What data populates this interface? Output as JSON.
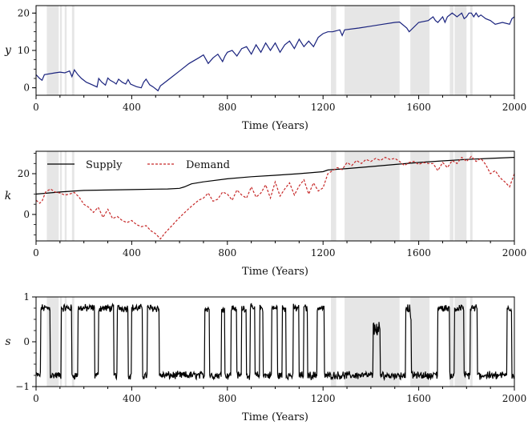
{
  "chart_data": [
    {
      "type": "line",
      "id": "panel-y",
      "ylabel": "y",
      "xlabel": "Time (Years)",
      "xlim": [
        0,
        2000
      ],
      "ylim": [
        -2,
        22
      ],
      "xticks": [
        0,
        400,
        800,
        1200,
        1600,
        2000
      ],
      "yticks": [
        0,
        10,
        20
      ],
      "xtick_labels": [
        "0",
        "400",
        "800",
        "1200",
        "1600",
        "2000"
      ],
      "ytick_labels": [
        "0",
        "10",
        "20"
      ],
      "shaded_intervals": [
        [
          45,
          95
        ],
        [
          100,
          108
        ],
        [
          120,
          128
        ],
        [
          150,
          160
        ],
        [
          1233,
          1255
        ],
        [
          1290,
          1520
        ],
        [
          1565,
          1645
        ],
        [
          1730,
          1745
        ],
        [
          1750,
          1800
        ],
        [
          1815,
          1825
        ]
      ],
      "series": [
        {
          "name": "y",
          "color": "#1a237e",
          "style": "solid",
          "x": [
            0,
            15,
            25,
            35,
            80,
            100,
            120,
            140,
            150,
            160,
            175,
            190,
            210,
            235,
            255,
            262,
            275,
            290,
            300,
            310,
            325,
            335,
            345,
            360,
            375,
            385,
            395,
            420,
            440,
            450,
            460,
            475,
            490,
            510,
            520,
            530,
            560,
            600,
            640,
            680,
            700,
            720,
            740,
            760,
            780,
            790,
            800,
            820,
            840,
            860,
            880,
            900,
            920,
            940,
            960,
            980,
            1000,
            1020,
            1040,
            1060,
            1080,
            1100,
            1120,
            1140,
            1160,
            1180,
            1200,
            1220,
            1240,
            1270,
            1280,
            1290,
            1350,
            1400,
            1450,
            1500,
            1520,
            1550,
            1560,
            1600,
            1640,
            1660,
            1670,
            1680,
            1700,
            1710,
            1720,
            1740,
            1760,
            1780,
            1790,
            1800,
            1810,
            1820,
            1830,
            1840,
            1850,
            1860,
            1880,
            1900,
            1920,
            1950,
            1980,
            1990,
            2000
          ],
          "y": [
            3.5,
            2.5,
            2.0,
            3.5,
            4.0,
            4.2,
            4.0,
            4.5,
            3.0,
            4.8,
            3.5,
            2.5,
            1.5,
            0.8,
            0.2,
            2.5,
            1.5,
            0.7,
            2.6,
            2.0,
            1.5,
            1.0,
            2.3,
            1.5,
            1.0,
            2.2,
            1.0,
            0.3,
            0.0,
            1.5,
            2.3,
            0.8,
            0.2,
            -0.8,
            0.5,
            1.0,
            2.5,
            4.5,
            6.5,
            8.0,
            8.8,
            6.5,
            8.0,
            9.0,
            7.0,
            8.5,
            9.5,
            10.0,
            8.5,
            10.5,
            11.0,
            9.0,
            11.5,
            9.5,
            12.0,
            10.0,
            12.0,
            9.5,
            11.5,
            12.5,
            10.5,
            13.0,
            11.0,
            12.5,
            11.0,
            13.5,
            14.5,
            15.0,
            15.0,
            15.5,
            14.0,
            15.5,
            16.0,
            16.5,
            17.0,
            17.5,
            17.6,
            16.0,
            15.0,
            17.5,
            18.0,
            19.0,
            18.0,
            17.5,
            19.0,
            17.5,
            19.0,
            20.0,
            19.0,
            20.0,
            18.5,
            19.0,
            20.0,
            20.0,
            19.0,
            20.0,
            19.0,
            19.5,
            18.5,
            18.0,
            17.0,
            17.5,
            17.0,
            18.5,
            19.0
          ]
        }
      ]
    },
    {
      "type": "line",
      "id": "panel-k",
      "ylabel": "k",
      "xlabel": "Time (Years)",
      "xlim": [
        0,
        2000
      ],
      "ylim": [
        -13,
        31
      ],
      "xticks": [
        0,
        400,
        800,
        1200,
        1600,
        2000
      ],
      "yticks": [
        0,
        20
      ],
      "xtick_labels": [
        "0",
        "400",
        "800",
        "1200",
        "1600",
        "2000"
      ],
      "ytick_labels": [
        "0",
        "20"
      ],
      "shaded_intervals": [
        [
          45,
          95
        ],
        [
          100,
          108
        ],
        [
          120,
          128
        ],
        [
          150,
          160
        ],
        [
          1233,
          1255
        ],
        [
          1290,
          1520
        ],
        [
          1565,
          1645
        ],
        [
          1730,
          1745
        ],
        [
          1750,
          1800
        ],
        [
          1815,
          1825
        ]
      ],
      "legend": [
        "Supply",
        "Demand"
      ],
      "series": [
        {
          "name": "Supply",
          "color": "#000000",
          "style": "solid",
          "x": [
            0,
            100,
            200,
            300,
            400,
            500,
            550,
            600,
            620,
            650,
            700,
            800,
            900,
            1000,
            1100,
            1200,
            1220,
            1300,
            1400,
            1500,
            1600,
            1700,
            1800,
            1900,
            2000
          ],
          "y": [
            10.0,
            11.0,
            11.8,
            12.0,
            12.2,
            12.4,
            12.5,
            12.8,
            13.5,
            15.0,
            16.0,
            17.5,
            18.5,
            19.2,
            20.0,
            21.0,
            21.8,
            22.5,
            23.5,
            24.5,
            25.5,
            26.3,
            27.0,
            27.5,
            28.0
          ]
        },
        {
          "name": "Demand",
          "color": "#c62828",
          "style": "dashed",
          "x": [
            0,
            15,
            25,
            40,
            60,
            80,
            100,
            120,
            140,
            160,
            180,
            200,
            220,
            240,
            260,
            280,
            300,
            320,
            340,
            360,
            380,
            400,
            420,
            440,
            460,
            480,
            500,
            520,
            540,
            560,
            600,
            640,
            680,
            700,
            720,
            740,
            760,
            780,
            800,
            820,
            840,
            860,
            880,
            900,
            920,
            940,
            960,
            980,
            1000,
            1020,
            1040,
            1060,
            1080,
            1100,
            1120,
            1140,
            1160,
            1180,
            1200,
            1220,
            1240,
            1260,
            1280,
            1300,
            1320,
            1340,
            1360,
            1380,
            1400,
            1420,
            1440,
            1460,
            1480,
            1500,
            1520,
            1540,
            1560,
            1580,
            1600,
            1620,
            1640,
            1660,
            1680,
            1700,
            1720,
            1740,
            1760,
            1780,
            1800,
            1820,
            1840,
            1860,
            1880,
            1900,
            1920,
            1940,
            1960,
            1980,
            2000
          ],
          "y": [
            7.0,
            5.5,
            6.5,
            11.0,
            12.5,
            11.0,
            10.5,
            9.5,
            10.0,
            10.8,
            8.5,
            5.0,
            3.5,
            1.0,
            3.5,
            -1.5,
            2.5,
            -2.0,
            -1.0,
            -3.0,
            -4.0,
            -3.0,
            -5.0,
            -6.0,
            -5.5,
            -8.0,
            -9.5,
            -12.0,
            -9.0,
            -6.5,
            -1.5,
            3.0,
            7.0,
            8.0,
            10.5,
            6.5,
            7.5,
            11.0,
            10.0,
            7.0,
            12.0,
            9.5,
            8.0,
            13.5,
            8.5,
            10.5,
            14.5,
            8.0,
            16.0,
            9.0,
            12.5,
            15.5,
            9.5,
            14.0,
            17.0,
            10.0,
            15.5,
            11.5,
            13.0,
            20.0,
            21.5,
            23.0,
            22.0,
            25.5,
            24.0,
            26.5,
            25.0,
            27.0,
            26.0,
            27.5,
            26.5,
            28.0,
            27.0,
            27.5,
            26.0,
            24.0,
            25.5,
            26.0,
            24.5,
            25.5,
            25.0,
            25.0,
            21.5,
            25.5,
            23.0,
            26.5,
            25.0,
            28.0,
            26.0,
            28.5,
            26.0,
            27.5,
            24.5,
            20.0,
            21.5,
            18.0,
            16.0,
            13.5,
            20.0
          ]
        }
      ]
    },
    {
      "type": "line",
      "id": "panel-s",
      "ylabel": "s",
      "xlabel": "Time (Years)",
      "xlim": [
        0,
        2000
      ],
      "ylim": [
        -1,
        1
      ],
      "xticks": [
        0,
        400,
        800,
        1200,
        1600,
        2000
      ],
      "yticks": [
        -1,
        0,
        1
      ],
      "xtick_labels": [
        "0",
        "400",
        "800",
        "1200",
        "1600",
        "2000"
      ],
      "ytick_labels": [
        "−1",
        "0",
        "1"
      ],
      "shaded_intervals": [
        [
          45,
          95
        ],
        [
          100,
          108
        ],
        [
          120,
          128
        ],
        [
          150,
          160
        ],
        [
          1233,
          1255
        ],
        [
          1290,
          1520
        ],
        [
          1565,
          1645
        ],
        [
          1730,
          1745
        ],
        [
          1750,
          1800
        ],
        [
          1815,
          1825
        ]
      ],
      "series": [
        {
          "name": "s",
          "color": "#000000",
          "style": "solid",
          "regime_switch_times": [
            20,
            60,
            105,
            150,
            175,
            245,
            262,
            325,
            340,
            385,
            400,
            445,
            465,
            515,
            705,
            725,
            775,
            790,
            815,
            840,
            860,
            880,
            895,
            915,
            935,
            950,
            985,
            1010,
            1030,
            1045,
            1075,
            1100,
            1120,
            1135,
            1175,
            1205,
            1410,
            1440,
            1545,
            1570,
            1680,
            1730,
            1750,
            1790,
            1815,
            1845,
            1970,
            1990
          ],
          "regime_start": -0.75,
          "noise_amplitude": 0.07
        }
      ]
    }
  ]
}
